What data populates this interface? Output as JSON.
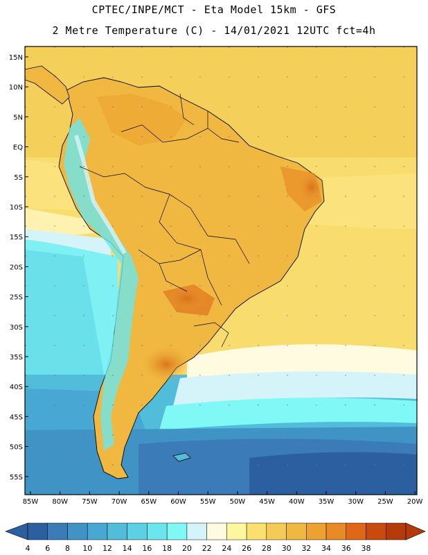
{
  "header": {
    "title_line1": "CPTEC/INPE/MCT -  Eta Model 15km - GFS",
    "title_line2": "2 Metre Temperature (C) - 14/01/2021 12UTC fct=4h"
  },
  "lat_labels": [
    "15N",
    "10N",
    "5N",
    "EQ",
    "5S",
    "10S",
    "15S",
    "20S",
    "25S",
    "30S",
    "35S",
    "40S",
    "45S",
    "50S",
    "55S"
  ],
  "lon_labels": [
    "85W",
    "80W",
    "75W",
    "70W",
    "65W",
    "60W",
    "55W",
    "50W",
    "45W",
    "40W",
    "35W",
    "30W",
    "25W",
    "20W"
  ],
  "colorbar": {
    "labels": [
      "4",
      "6",
      "8",
      "10",
      "12",
      "14",
      "16",
      "18",
      "20",
      "22",
      "24",
      "26",
      "28",
      "30",
      "32",
      "34",
      "36",
      "38"
    ],
    "colors": [
      "#2c5fa0",
      "#3a7bb8",
      "#3f93c5",
      "#48a8d3",
      "#52bcdb",
      "#5dd1e3",
      "#6ae6ec",
      "#7ff8f6",
      "#d4f4fa",
      "#fffbe0",
      "#fff6a0",
      "#fbe070",
      "#f4cc55",
      "#f0b840",
      "#eca130",
      "#e88a25",
      "#e06618",
      "#c84a0c",
      "#b43a0a"
    ]
  }
}
